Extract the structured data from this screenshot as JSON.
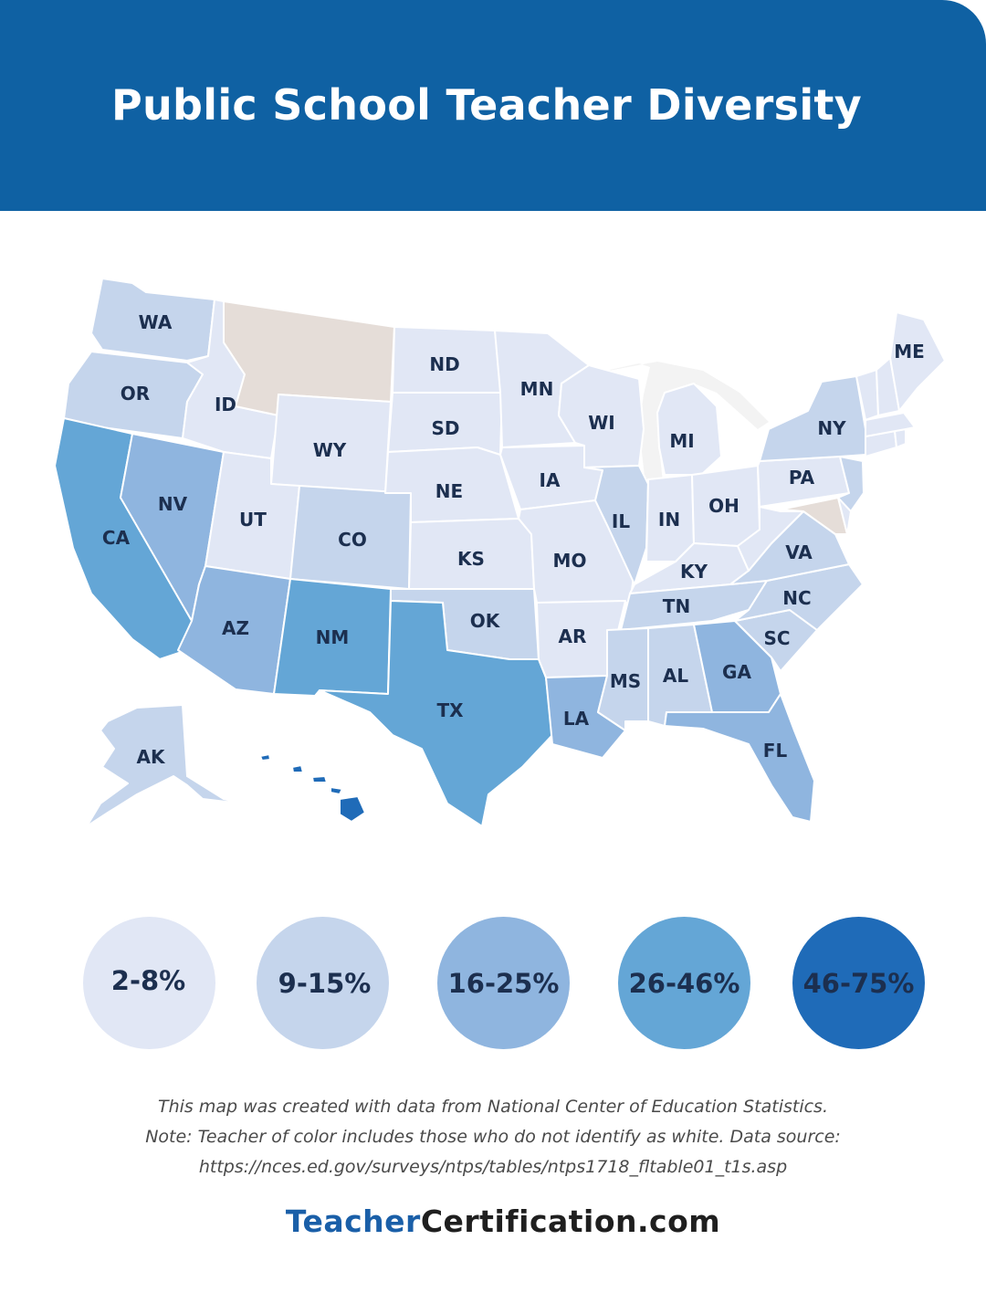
{
  "title": "Public School Teacher Diversity",
  "colors": {
    "header_bg": "#0f61a3",
    "no_data": "#e5ddd8",
    "scale": [
      "#e1e7f5",
      "#c5d5ec",
      "#8fb5df",
      "#64a6d6",
      "#1f6bb8"
    ]
  },
  "states": {
    "WA": {
      "label": "WA",
      "bin": 1
    },
    "OR": {
      "label": "OR",
      "bin": 1
    },
    "CA": {
      "label": "CA",
      "bin": 3
    },
    "NV": {
      "label": "NV",
      "bin": 2
    },
    "ID": {
      "label": "ID",
      "bin": 0
    },
    "MT": {
      "label": "",
      "bin": -1
    },
    "WY": {
      "label": "WY",
      "bin": 0
    },
    "UT": {
      "label": "UT",
      "bin": 0
    },
    "AZ": {
      "label": "AZ",
      "bin": 2
    },
    "CO": {
      "label": "CO",
      "bin": 1
    },
    "NM": {
      "label": "NM",
      "bin": 3
    },
    "ND": {
      "label": "ND",
      "bin": 0
    },
    "SD": {
      "label": "SD",
      "bin": 0
    },
    "NE": {
      "label": "NE",
      "bin": 0
    },
    "KS": {
      "label": "KS",
      "bin": 0
    },
    "OK": {
      "label": "OK",
      "bin": 1
    },
    "TX": {
      "label": "TX",
      "bin": 3
    },
    "MN": {
      "label": "MN",
      "bin": 0
    },
    "IA": {
      "label": "IA",
      "bin": 0
    },
    "MO": {
      "label": "MO",
      "bin": 0
    },
    "AR": {
      "label": "AR",
      "bin": 0
    },
    "LA": {
      "label": "LA",
      "bin": 2
    },
    "WI": {
      "label": "WI",
      "bin": 0
    },
    "IL": {
      "label": "IL",
      "bin": 1
    },
    "MI": {
      "label": "MI",
      "bin": 0
    },
    "IN": {
      "label": "IN",
      "bin": 0
    },
    "OH": {
      "label": "OH",
      "bin": 0
    },
    "KY": {
      "label": "KY",
      "bin": 0
    },
    "TN": {
      "label": "TN",
      "bin": 1
    },
    "MS": {
      "label": "MS",
      "bin": 1
    },
    "AL": {
      "label": "AL",
      "bin": 1
    },
    "GA": {
      "label": "GA",
      "bin": 2
    },
    "FL": {
      "label": "FL",
      "bin": 2
    },
    "SC": {
      "label": "SC",
      "bin": 1
    },
    "NC": {
      "label": "NC",
      "bin": 1
    },
    "VA": {
      "label": "VA",
      "bin": 1
    },
    "WV": {
      "label": "",
      "bin": 0
    },
    "MD": {
      "label": "",
      "bin": -1
    },
    "DE": {
      "label": "",
      "bin": 0
    },
    "PA": {
      "label": "PA",
      "bin": 0
    },
    "NJ": {
      "label": "",
      "bin": 1
    },
    "NY": {
      "label": "NY",
      "bin": 1
    },
    "CT": {
      "label": "",
      "bin": 0
    },
    "RI": {
      "label": "",
      "bin": 0
    },
    "MA": {
      "label": "",
      "bin": 0
    },
    "VT": {
      "label": "",
      "bin": 0
    },
    "NH": {
      "label": "",
      "bin": 0
    },
    "ME": {
      "label": "ME",
      "bin": 0
    },
    "AK": {
      "label": "AK",
      "bin": 1
    },
    "HI": {
      "label": "",
      "bin": 4
    }
  },
  "legend": [
    {
      "label": "2-8%",
      "bin": 0
    },
    {
      "label": "9-15%",
      "bin": 1
    },
    {
      "label": "16-25%",
      "bin": 2
    },
    {
      "label": "26-46%",
      "bin": 3
    },
    {
      "label": "46-75%",
      "bin": 4
    }
  ],
  "note": {
    "line1": "This map was created with data from National Center of Education Statistics.",
    "line2": "Note: Teacher of color includes those who do not identify as white. Data source:",
    "line3": "https://nces.ed.gov/surveys/ntps/tables/ntps1718_fltable01_t1s.asp"
  },
  "brand": {
    "part1": "Teacher",
    "part2": "Certification.com"
  }
}
